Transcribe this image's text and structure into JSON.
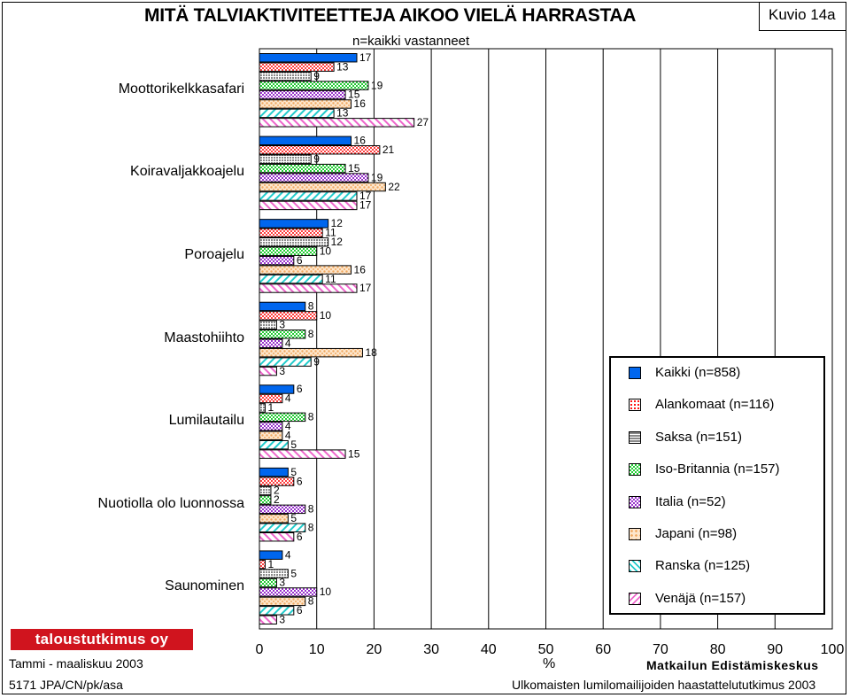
{
  "header": {
    "title": "MITÄ TALVIAKTIVITEETTEJA AIKOO VIELÄ HARRASTAA",
    "subtitle": "n=kaikki vastanneet",
    "figure_no": "Kuvio 14a"
  },
  "footer": {
    "brand": "taloustutkimus oy",
    "date": "Tammi - maaliskuu 2003",
    "code": "5171 JPA/CN/pk/asa",
    "publisher": "Matkailun Edistämiskeskus",
    "study": "Ulkomaisten lumilomailijoiden haastattelututkimus 2003"
  },
  "chart_data": {
    "type": "bar",
    "orientation": "horizontal",
    "title": "MITÄ TALVIAKTIVITEETTEJA AIKOO VIELÄ HARRASTAA",
    "subtitle": "n=kaikki vastanneet",
    "xlabel": "%",
    "ylabel": "",
    "xlim": [
      0,
      100
    ],
    "xticks": [
      0,
      10,
      20,
      30,
      40,
      50,
      60,
      70,
      80,
      90,
      100
    ],
    "grid": true,
    "legend_position": "right",
    "categories": [
      "Moottorikelkkasafari",
      "Koiravaljakkoajelu",
      "Poroajelu",
      "Maastohiihto",
      "Lumilautailu",
      "Nuotiolla olo luonnossa",
      "Saunominen"
    ],
    "series": [
      {
        "name": "Kaikki (n=858)",
        "color": "#0066ee",
        "pattern": "solid",
        "values": [
          17,
          16,
          12,
          8,
          6,
          5,
          4
        ]
      },
      {
        "name": "Alankomaat (n=116)",
        "color": "#ff0000",
        "pattern": "dots",
        "values": [
          13,
          21,
          11,
          10,
          4,
          6,
          1
        ]
      },
      {
        "name": "Saksa (n=151)",
        "color": "#a0a0a0",
        "pattern": "grid",
        "values": [
          9,
          9,
          12,
          3,
          1,
          2,
          5
        ]
      },
      {
        "name": "Iso-Britannia (n=157)",
        "color": "#22cc33",
        "pattern": "checker",
        "values": [
          19,
          15,
          10,
          8,
          8,
          2,
          3
        ]
      },
      {
        "name": "Italia (n=52)",
        "color": "#9933cc",
        "pattern": "checker",
        "values": [
          15,
          19,
          6,
          4,
          4,
          8,
          10
        ]
      },
      {
        "name": "Japani (n=98)",
        "color": "#f5c090",
        "pattern": "dots",
        "values": [
          16,
          22,
          16,
          18,
          4,
          5,
          8
        ]
      },
      {
        "name": "Ranska (n=125)",
        "color": "#22cccc",
        "pattern": "hatch",
        "values": [
          13,
          17,
          11,
          9,
          5,
          8,
          6
        ]
      },
      {
        "name": "Venäjä (n=157)",
        "color": "#ee66cc",
        "pattern": "hatch",
        "values": [
          27,
          17,
          17,
          3,
          15,
          6,
          3
        ]
      }
    ]
  }
}
